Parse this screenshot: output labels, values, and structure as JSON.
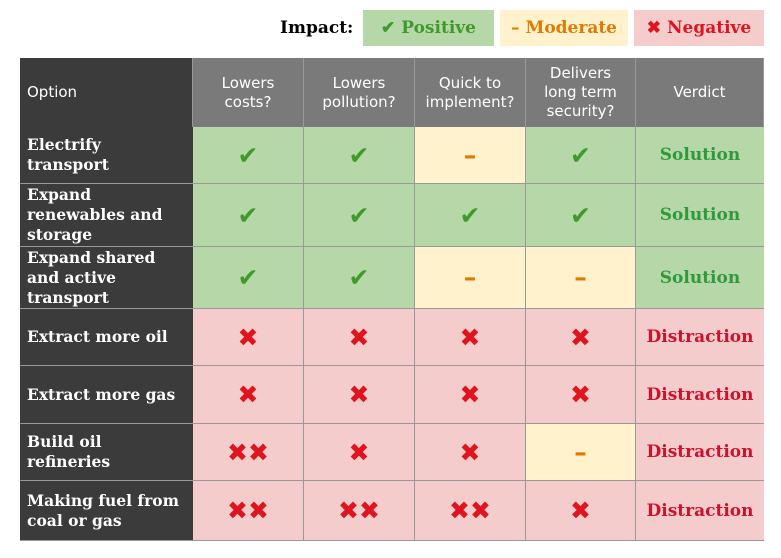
{
  "legend": {
    "title": "Impact:",
    "items": [
      {
        "symbol": "✔",
        "label": "Positive",
        "color": "#3f9a2c",
        "background": "#b6d7a8"
      },
      {
        "symbol": "–",
        "label": "Moderate",
        "color": "#e27a00",
        "background": "#fff2cc"
      },
      {
        "symbol": "✖",
        "label": "Negative",
        "color": "#e0141e",
        "background": "#f4cccc"
      }
    ]
  },
  "table": {
    "header": [
      "Option",
      "Lowers costs?",
      "Lowers pollution?",
      "Quick to implement?",
      "Delivers long term security?",
      "Verdict"
    ],
    "rows": [
      {
        "option": "Electrify transport",
        "cells": [
          "✔",
          "✔",
          "–",
          "✔"
        ],
        "verdict": {
          "text": "Solution",
          "color": "#2e9a3a",
          "background": "#b6d7a8"
        }
      },
      {
        "option": "Expand renewables and storage",
        "cells": [
          "✔",
          "✔",
          "✔",
          "✔"
        ],
        "verdict": {
          "text": "Solution",
          "color": "#2e9a3a",
          "background": "#b6d7a8"
        }
      },
      {
        "option": "Expand shared and active transport",
        "cells": [
          "✔",
          "✔",
          "–",
          "–"
        ],
        "verdict": {
          "text": "Solution",
          "color": "#2e9a3a",
          "background": "#b6d7a8"
        }
      },
      {
        "option": "Extract more oil",
        "cells": [
          "✖",
          "✖",
          "✖",
          "✖"
        ],
        "verdict": {
          "text": "Distraction",
          "color": "#d0112b",
          "background": "#f4cccc"
        }
      },
      {
        "option": "Extract more gas",
        "cells": [
          "✖",
          "✖",
          "✖",
          "✖"
        ],
        "verdict": {
          "text": "Distraction",
          "color": "#d0112b",
          "background": "#f4cccc"
        }
      },
      {
        "option": "Build oil refineries",
        "cells": [
          "✖✖",
          "✖",
          "✖",
          "–"
        ],
        "verdict": {
          "text": "Distraction",
          "color": "#d0112b",
          "background": "#f4cccc"
        }
      },
      {
        "option": "Making fuel from coal or gas",
        "cells": [
          "✖✖",
          "✖✖",
          "✖✖",
          "✖"
        ],
        "verdict": {
          "text": "Distraction",
          "color": "#d0112b",
          "background": "#f4cccc"
        }
      }
    ]
  }
}
